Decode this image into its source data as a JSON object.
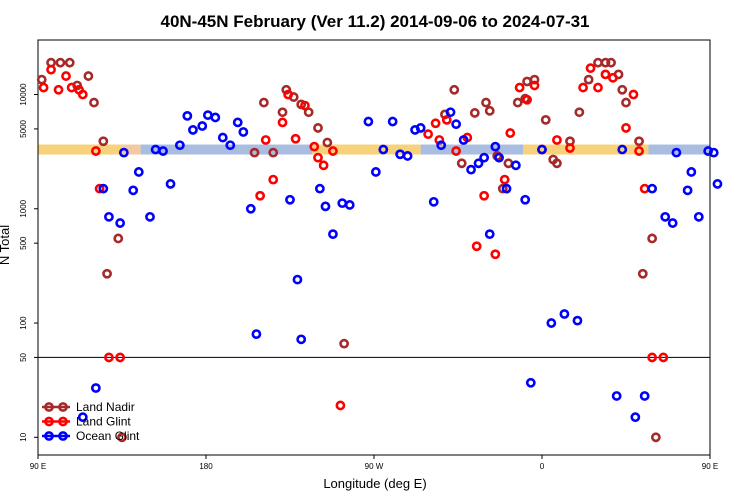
{
  "chart_data": {
    "type": "scatter",
    "title": "40N-45N February (Ver 11.2)   2014-09-06 to 2024-07-31",
    "xlabel": "Longitude (deg E)",
    "ylabel": "N Total",
    "x_unit": "longitude_shifted_from_90E",
    "xlim": [
      0,
      360
    ],
    "y_scale": "log",
    "ylim": [
      7,
      30000
    ],
    "xticks": [
      {
        "value": 0,
        "label": "90 E"
      },
      {
        "value": 90,
        "label": "180"
      },
      {
        "value": 180,
        "label": "90 W"
      },
      {
        "value": 270,
        "label": "0"
      },
      {
        "value": 360,
        "label": "90 E"
      }
    ],
    "yticks": [
      {
        "value": 10,
        "label": "10"
      },
      {
        "value": 50,
        "label": "50"
      },
      {
        "value": 100,
        "label": "100"
      },
      {
        "value": 500,
        "label": "500"
      },
      {
        "value": 1000,
        "label": "1000"
      },
      {
        "value": 5000,
        "label": "5000"
      },
      {
        "value": 10000,
        "label": "10000"
      }
    ],
    "hline": 50,
    "band": {
      "y": 3300,
      "segments": [
        {
          "x0": 0,
          "x1": 45,
          "color": "#f7d27a"
        },
        {
          "x0": 45,
          "x1": 55,
          "color": "#f2c9a0"
        },
        {
          "x0": 55,
          "x1": 147,
          "color": "#a9bde0"
        },
        {
          "x0": 147,
          "x1": 205,
          "color": "#f7d27a"
        },
        {
          "x0": 205,
          "x1": 260,
          "color": "#a9bde0"
        },
        {
          "x0": 260,
          "x1": 327,
          "color": "#f7d27a"
        },
        {
          "x0": 327,
          "x1": 360,
          "color": "#a9bde0"
        }
      ]
    },
    "legend_position": "bottom-left",
    "series": [
      {
        "name": "Land Nadir",
        "color": "#a52a2a",
        "points": [
          [
            2,
            13500
          ],
          [
            7,
            19000
          ],
          [
            12,
            19000
          ],
          [
            17,
            19000
          ],
          [
            21,
            12000
          ],
          [
            27,
            14500
          ],
          [
            30,
            8500
          ],
          [
            35,
            3900
          ],
          [
            37,
            270
          ],
          [
            43,
            550
          ],
          [
            45,
            10
          ],
          [
            116,
            3100
          ],
          [
            121,
            8500
          ],
          [
            126,
            3100
          ],
          [
            131,
            7000
          ],
          [
            133,
            11000
          ],
          [
            137,
            9500
          ],
          [
            141,
            8200
          ],
          [
            145,
            7000
          ],
          [
            150,
            5100
          ],
          [
            155,
            3800
          ],
          [
            164,
            66
          ],
          [
            218,
            6700
          ],
          [
            223,
            11000
          ],
          [
            227,
            2500
          ],
          [
            234,
            6900
          ],
          [
            240,
            8500
          ],
          [
            242,
            7200
          ],
          [
            246,
            2900
          ],
          [
            249,
            1500
          ],
          [
            252,
            2500
          ],
          [
            257,
            8500
          ],
          [
            261,
            9200
          ],
          [
            262,
            13000
          ],
          [
            266,
            13500
          ],
          [
            272,
            6000
          ],
          [
            276,
            2700
          ],
          [
            278,
            2500
          ],
          [
            285,
            3900
          ],
          [
            290,
            7000
          ],
          [
            295,
            13500
          ],
          [
            300,
            19000
          ],
          [
            304,
            19000
          ],
          [
            307,
            19000
          ],
          [
            311,
            15000
          ],
          [
            313,
            11000
          ],
          [
            315,
            8500
          ],
          [
            322,
            3900
          ],
          [
            324,
            270
          ],
          [
            329,
            550
          ],
          [
            331,
            10
          ]
        ]
      },
      {
        "name": "Land Glint",
        "color": "#ff0000",
        "points": [
          [
            3,
            11500
          ],
          [
            7,
            16500
          ],
          [
            11,
            11000
          ],
          [
            15,
            14500
          ],
          [
            18,
            11500
          ],
          [
            22,
            11000
          ],
          [
            24,
            10000
          ],
          [
            31,
            3200
          ],
          [
            33,
            1500
          ],
          [
            38,
            50
          ],
          [
            44,
            50
          ],
          [
            119,
            1300
          ],
          [
            122,
            4000
          ],
          [
            126,
            1800
          ],
          [
            131,
            5700
          ],
          [
            134,
            10000
          ],
          [
            138,
            4100
          ],
          [
            143,
            8000
          ],
          [
            148,
            3500
          ],
          [
            150,
            2800
          ],
          [
            153,
            2400
          ],
          [
            158,
            3200
          ],
          [
            162,
            19
          ],
          [
            209,
            4500
          ],
          [
            213,
            5600
          ],
          [
            215,
            4000
          ],
          [
            219,
            6000
          ],
          [
            224,
            3200
          ],
          [
            230,
            4200
          ],
          [
            235,
            470
          ],
          [
            239,
            1300
          ],
          [
            245,
            400
          ],
          [
            250,
            1800
          ],
          [
            253,
            4600
          ],
          [
            258,
            11500
          ],
          [
            262,
            9000
          ],
          [
            266,
            12000
          ],
          [
            270,
            3300
          ],
          [
            278,
            4000
          ],
          [
            285,
            3400
          ],
          [
            292,
            11500
          ],
          [
            296,
            17000
          ],
          [
            300,
            11500
          ],
          [
            304,
            15000
          ],
          [
            308,
            14000
          ],
          [
            315,
            5100
          ],
          [
            319,
            10000
          ],
          [
            322,
            3200
          ],
          [
            325,
            1500
          ],
          [
            329,
            50
          ],
          [
            335,
            50
          ]
        ]
      },
      {
        "name": "Ocean Glint",
        "color": "#0000ff",
        "points": [
          [
            24,
            15
          ],
          [
            31,
            27
          ],
          [
            35,
            1500
          ],
          [
            38,
            850
          ],
          [
            44,
            750
          ],
          [
            46,
            3100
          ],
          [
            51,
            1450
          ],
          [
            54,
            2100
          ],
          [
            60,
            850
          ],
          [
            63,
            3300
          ],
          [
            67,
            3200
          ],
          [
            71,
            1650
          ],
          [
            76,
            3600
          ],
          [
            80,
            6500
          ],
          [
            83,
            4900
          ],
          [
            88,
            5300
          ],
          [
            91,
            6600
          ],
          [
            95,
            6300
          ],
          [
            99,
            4200
          ],
          [
            103,
            3600
          ],
          [
            107,
            5700
          ],
          [
            110,
            4700
          ],
          [
            114,
            1000
          ],
          [
            117,
            80
          ],
          [
            135,
            1200
          ],
          [
            139,
            240
          ],
          [
            141,
            72
          ],
          [
            151,
            1500
          ],
          [
            154,
            1050
          ],
          [
            158,
            600
          ],
          [
            163,
            1120
          ],
          [
            167,
            1080
          ],
          [
            177,
            5800
          ],
          [
            181,
            2100
          ],
          [
            185,
            3300
          ],
          [
            190,
            5800
          ],
          [
            194,
            3000
          ],
          [
            198,
            2900
          ],
          [
            202,
            4900
          ],
          [
            205,
            5100
          ],
          [
            212,
            1150
          ],
          [
            216,
            3600
          ],
          [
            221,
            7000
          ],
          [
            224,
            5500
          ],
          [
            228,
            4000
          ],
          [
            232,
            2200
          ],
          [
            236,
            2500
          ],
          [
            239,
            2800
          ],
          [
            242,
            600
          ],
          [
            245,
            3500
          ],
          [
            247,
            2800
          ],
          [
            251,
            1500
          ],
          [
            256,
            2400
          ],
          [
            261,
            1200
          ],
          [
            264,
            30
          ],
          [
            270,
            3300
          ],
          [
            275,
            100
          ],
          [
            282,
            120
          ],
          [
            289,
            105
          ],
          [
            310,
            23
          ],
          [
            313,
            3300
          ],
          [
            320,
            15
          ],
          [
            325,
            23
          ],
          [
            329,
            1500
          ],
          [
            336,
            850
          ],
          [
            340,
            750
          ],
          [
            342,
            3100
          ],
          [
            348,
            1450
          ],
          [
            350,
            2100
          ],
          [
            354,
            850
          ],
          [
            359,
            3200
          ],
          [
            362,
            3100
          ],
          [
            364,
            1650
          ]
        ]
      }
    ]
  }
}
